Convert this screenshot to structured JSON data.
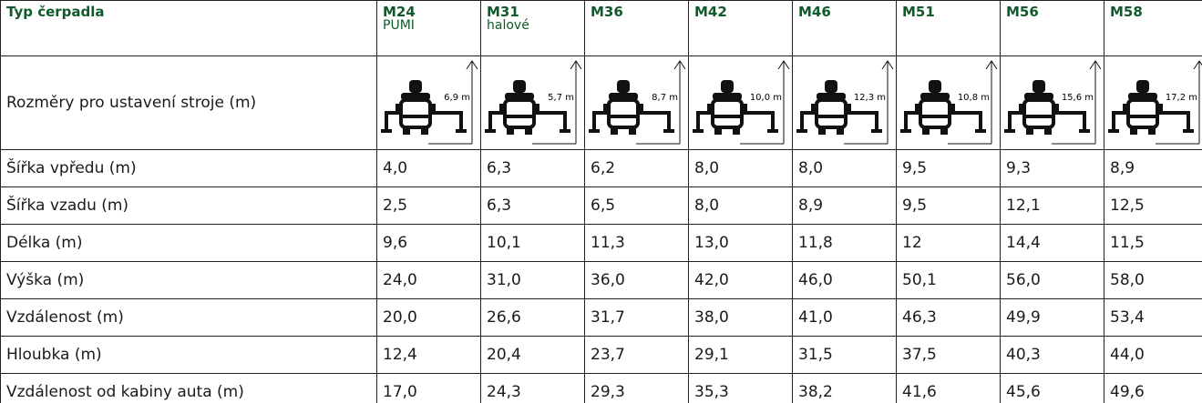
{
  "header": {
    "title": "Typ čerpadla",
    "columns": [
      {
        "name": "M24",
        "sub": "PUMI"
      },
      {
        "name": "M31",
        "sub": "halové"
      },
      {
        "name": "M36"
      },
      {
        "name": "M42"
      },
      {
        "name": "M46"
      },
      {
        "name": "M51"
      },
      {
        "name": "M56"
      },
      {
        "name": "M58"
      }
    ]
  },
  "icon_row": {
    "label": "Rozměry pro ustavení stroje (m)",
    "heights": [
      "6,9 m",
      "5,7 m",
      "8,7 m",
      "10,0 m",
      "12,3 m",
      "10,8 m",
      "15,6 m",
      "17,2 m"
    ]
  },
  "rows": [
    {
      "label": "Šířka vpředu (m)",
      "values": [
        "4,0",
        "6,3",
        "6,2",
        "8,0",
        "8,0",
        "9,5",
        "9,3",
        "8,9"
      ]
    },
    {
      "label": "Šířka vzadu (m)",
      "values": [
        "2,5",
        "6,3",
        "6,5",
        "8,0",
        "8,9",
        "9,5",
        "12,1",
        "12,5"
      ]
    },
    {
      "label": "Délka (m)",
      "values": [
        "9,6",
        "10,1",
        "11,3",
        "13,0",
        "11,8",
        "12",
        "14,4",
        "11,5"
      ]
    },
    {
      "label": "Výška (m)",
      "values": [
        "24,0",
        "31,0",
        "36,0",
        "42,0",
        "46,0",
        "50,1",
        "56,0",
        "58,0"
      ]
    },
    {
      "label": "Vzdálenost (m)",
      "values": [
        "20,0",
        "26,6",
        "31,7",
        "38,0",
        "41,0",
        "46,3",
        "49,9",
        "53,4"
      ]
    },
    {
      "label": "Hloubka (m)",
      "values": [
        "12,4",
        "20,4",
        "23,7",
        "29,1",
        "31,5",
        "37,5",
        "40,3",
        "44,0"
      ]
    },
    {
      "label": "Vzdálenost od kabiny auta (m)",
      "values": [
        "17,0",
        "24,3",
        "29,3",
        "35,3",
        "38,2",
        "41,6",
        "45,6",
        "49,6"
      ]
    }
  ]
}
